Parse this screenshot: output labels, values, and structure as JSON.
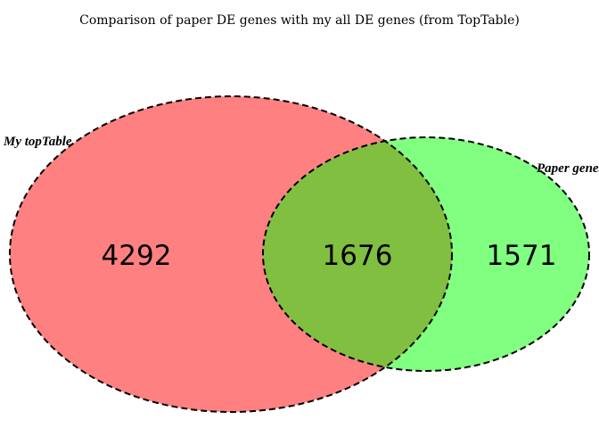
{
  "chart_data": {
    "type": "venn",
    "title": "Comparison of paper DE genes with my all DE genes (from TopTable)",
    "sets": [
      {
        "name": "My topTable",
        "only_count": "4292",
        "color": "#FF8080"
      },
      {
        "name": "Paper genes",
        "only_count": "1571",
        "color": "#80FF80"
      }
    ],
    "intersection": {
      "count": "1676",
      "color": "#80BF40"
    }
  }
}
